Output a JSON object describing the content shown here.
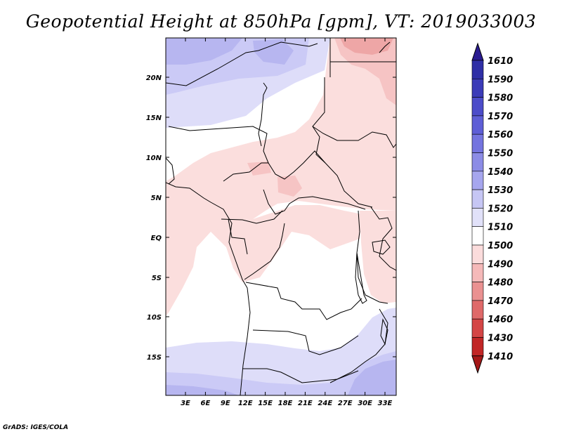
{
  "title": "Geopotential Height at 850hPa [gpm], VT: 2019033003",
  "credit": "GrADS: IGES/COLA",
  "lat_labels": [
    "20N",
    "15N",
    "10N",
    "5N",
    "EQ",
    "5S",
    "10S",
    "15S"
  ],
  "lon_labels": [
    "3E",
    "6E",
    "9E",
    "12E",
    "15E",
    "18E",
    "21E",
    "24E",
    "27E",
    "30E",
    "33E"
  ],
  "colorbar": {
    "labels": [
      "1610",
      "1590",
      "1580",
      "1570",
      "1560",
      "1550",
      "1540",
      "1530",
      "1520",
      "1510",
      "1500",
      "1490",
      "1480",
      "1470",
      "1460",
      "1430",
      "1410"
    ],
    "colors": [
      "#2a1c91",
      "#2f2fa6",
      "#3b3bb8",
      "#4c4cc9",
      "#5e5ed6",
      "#7474df",
      "#8c8ce6",
      "#a6a6ee",
      "#c6c6f4",
      "#e1e1f9",
      "#ffffff",
      "#fbdcdc",
      "#f5b9b9",
      "#ea9191",
      "#df6969",
      "#d44545",
      "#c12626",
      "#a51818"
    ]
  },
  "map_colors": {
    "c1540": "#b7b6f0",
    "c1530": "#cbcaf6",
    "c1520": "#deddf9",
    "c1510": "#ffffff",
    "c1500": "#fbdedd",
    "c1490": "#f6c4c4",
    "c1480": "#eea6a6",
    "border": "#000000"
  }
}
